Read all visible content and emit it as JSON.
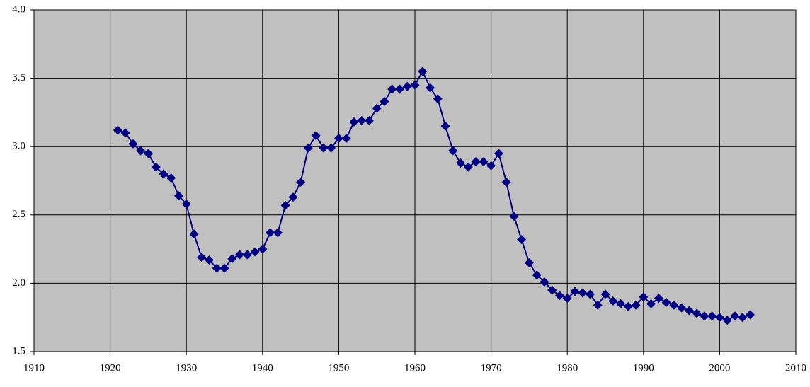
{
  "chart_data": {
    "type": "line",
    "x": [
      1921,
      1922,
      1923,
      1924,
      1925,
      1926,
      1927,
      1928,
      1929,
      1930,
      1931,
      1932,
      1933,
      1934,
      1935,
      1936,
      1937,
      1938,
      1939,
      1940,
      1941,
      1942,
      1943,
      1944,
      1945,
      1946,
      1947,
      1948,
      1949,
      1950,
      1951,
      1952,
      1953,
      1954,
      1955,
      1956,
      1957,
      1958,
      1959,
      1960,
      1961,
      1962,
      1963,
      1964,
      1965,
      1966,
      1967,
      1968,
      1969,
      1970,
      1971,
      1972,
      1973,
      1974,
      1975,
      1976,
      1977,
      1978,
      1979,
      1980,
      1981,
      1982,
      1983,
      1984,
      1985,
      1986,
      1987,
      1988,
      1989,
      1990,
      1991,
      1992,
      1993,
      1994,
      1995,
      1996,
      1997,
      1998,
      1999,
      2000,
      2001,
      2002,
      2003,
      2004
    ],
    "values": [
      3.12,
      3.1,
      3.02,
      2.97,
      2.95,
      2.85,
      2.8,
      2.77,
      2.64,
      2.58,
      2.36,
      2.19,
      2.17,
      2.11,
      2.11,
      2.18,
      2.21,
      2.21,
      2.23,
      2.25,
      2.37,
      2.37,
      2.57,
      2.63,
      2.74,
      2.99,
      3.08,
      2.99,
      2.99,
      3.06,
      3.06,
      3.18,
      3.19,
      3.19,
      3.28,
      3.33,
      3.42,
      3.42,
      3.44,
      3.45,
      3.55,
      3.43,
      3.35,
      3.15,
      2.97,
      2.88,
      2.85,
      2.89,
      2.89,
      2.86,
      2.95,
      2.74,
      2.49,
      2.32,
      2.15,
      2.06,
      2.01,
      1.95,
      1.91,
      1.89,
      1.94,
      1.93,
      1.92,
      1.84,
      1.92,
      1.87,
      1.85,
      1.83,
      1.84,
      1.9,
      1.85,
      1.89,
      1.86,
      1.84,
      1.82,
      1.8,
      1.78,
      1.76,
      1.76,
      1.75,
      1.73,
      1.76,
      1.75,
      1.77
    ],
    "color": "#000080",
    "plot_background": "#c0c0c0",
    "grid": true,
    "xlim": [
      1910,
      2010
    ],
    "xticks": [
      1910,
      1920,
      1930,
      1940,
      1950,
      1960,
      1970,
      1980,
      1990,
      2000,
      2010
    ],
    "ylim": [
      1.5,
      4.0
    ],
    "yticks": [
      1.5,
      {
        "value": 2,
        "label": "2.0"
      },
      2.5,
      {
        "value": 3,
        "label": "3.0"
      },
      3.5,
      {
        "value": 4,
        "label": "4.0"
      }
    ]
  }
}
